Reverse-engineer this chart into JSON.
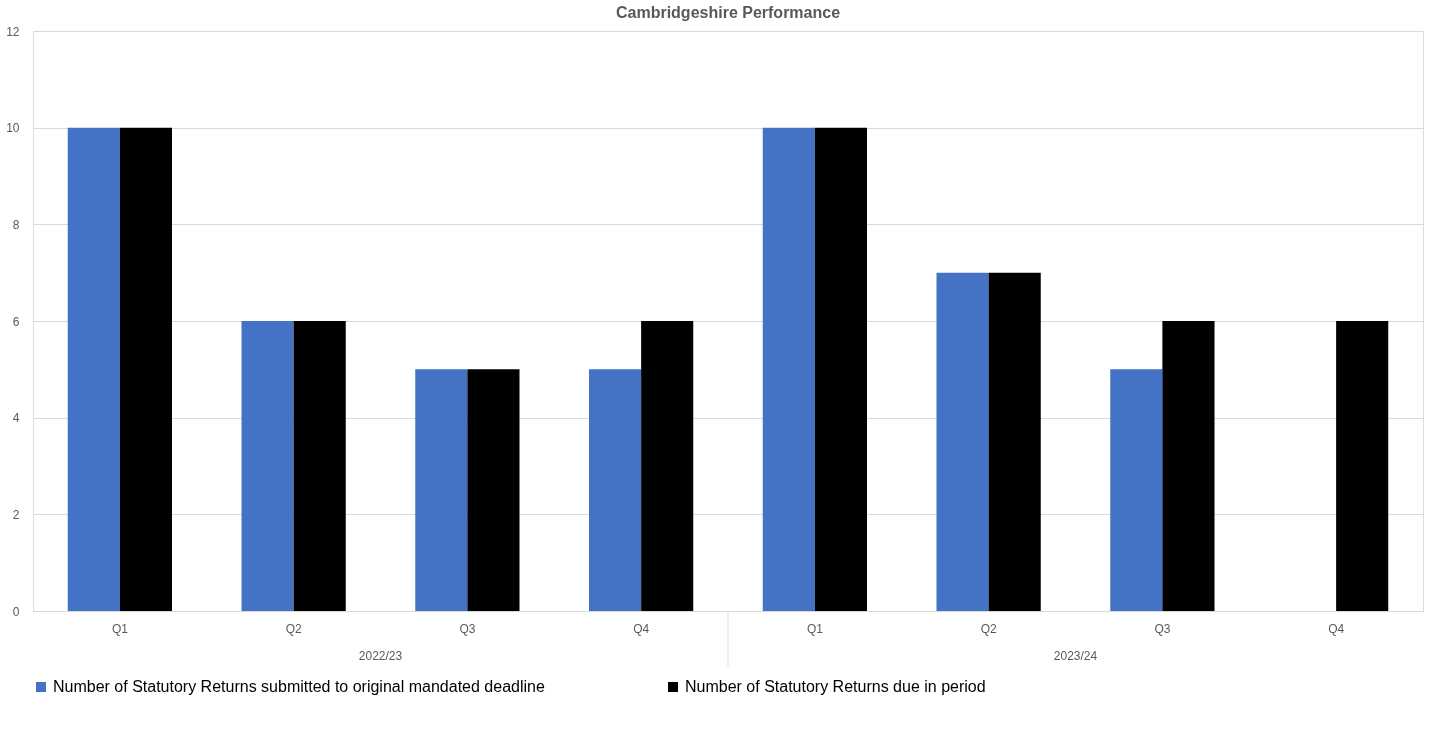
{
  "chart_data": {
    "type": "bar",
    "title": "Cambridgeshire Performance",
    "categories": [
      "Q1",
      "Q2",
      "Q3",
      "Q4",
      "Q1",
      "Q2",
      "Q3",
      "Q4"
    ],
    "series": [
      {
        "name": "Number of Statutory Returns submitted to original mandated deadline",
        "color": "#4472c4",
        "values": [
          10,
          6,
          5,
          5,
          10,
          7,
          5,
          null
        ]
      },
      {
        "name": "Number of Statutory Returns due in period",
        "color": "#000000",
        "values": [
          10,
          6,
          5,
          6,
          10,
          7,
          6,
          6
        ]
      }
    ],
    "annotations": [
      "2022/23",
      "2023/24"
    ],
    "ylim": [
      0,
      12
    ],
    "yticks": [
      0,
      2,
      4,
      6,
      8,
      10,
      12
    ],
    "grid": "y",
    "legend": "bottom"
  }
}
